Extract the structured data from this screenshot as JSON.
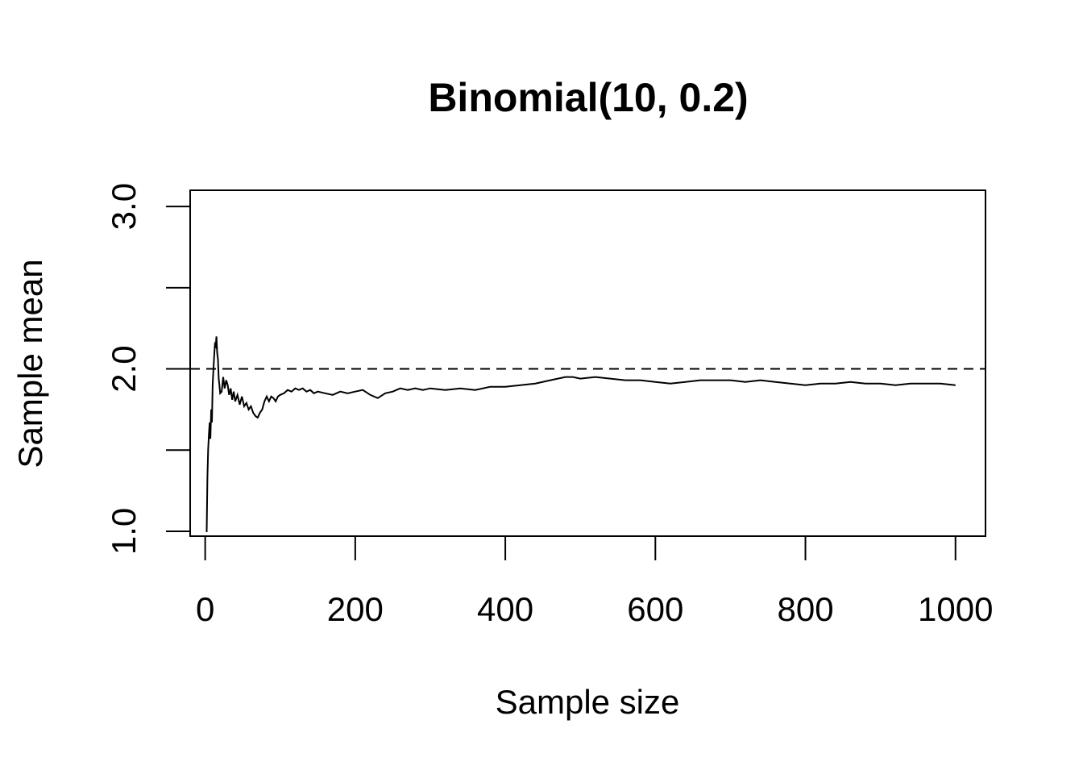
{
  "chart_data": {
    "type": "line",
    "title": "Binomial(10, 0.2)",
    "xlabel": "Sample size",
    "ylabel": "Sample mean",
    "xlim": [
      -20,
      1040
    ],
    "ylim": [
      0.97,
      3.1
    ],
    "x_ticks": [
      0,
      200,
      400,
      600,
      800,
      1000
    ],
    "x_tick_labels": [
      "0",
      "200",
      "400",
      "600",
      "800",
      "1000"
    ],
    "y_ticks": [
      1.0,
      1.5,
      2.0,
      2.5,
      3.0
    ],
    "y_tick_labels": [
      "1.0",
      "",
      "2.0",
      "",
      "3.0"
    ],
    "grid": false,
    "reference_line": {
      "y": 2.0,
      "style": "dashed"
    },
    "series": [
      {
        "x": [
          1,
          2,
          3,
          4,
          5,
          6,
          7,
          8,
          9,
          10,
          11,
          12,
          13,
          14,
          15,
          16,
          17,
          18,
          19,
          20,
          22,
          24,
          26,
          28,
          30,
          32,
          34,
          36,
          38,
          40,
          43,
          46,
          49,
          52,
          55,
          58,
          61,
          64,
          67,
          70,
          73,
          76,
          79,
          82,
          85,
          88,
          91,
          94,
          97,
          100,
          105,
          110,
          115,
          120,
          125,
          130,
          135,
          140,
          145,
          150,
          160,
          170,
          180,
          190,
          200,
          210,
          220,
          230,
          240,
          250,
          260,
          270,
          280,
          290,
          300,
          320,
          340,
          360,
          380,
          400,
          420,
          440,
          460,
          480,
          490,
          500,
          520,
          540,
          560,
          580,
          600,
          620,
          640,
          660,
          680,
          700,
          720,
          740,
          760,
          780,
          800,
          820,
          840,
          860,
          880,
          900,
          920,
          940,
          960,
          980,
          1000
        ],
        "y": [
          1.0,
          1.0,
          1.33,
          1.5,
          1.6,
          1.67,
          1.57,
          1.75,
          1.67,
          1.9,
          2.0,
          2.08,
          2.15,
          2.14,
          2.2,
          2.1,
          2.06,
          1.94,
          1.9,
          1.85,
          1.86,
          1.95,
          1.88,
          1.93,
          1.9,
          1.84,
          1.88,
          1.81,
          1.86,
          1.8,
          1.84,
          1.78,
          1.83,
          1.77,
          1.79,
          1.75,
          1.77,
          1.73,
          1.71,
          1.7,
          1.73,
          1.75,
          1.8,
          1.83,
          1.8,
          1.83,
          1.82,
          1.8,
          1.83,
          1.84,
          1.85,
          1.87,
          1.86,
          1.88,
          1.87,
          1.88,
          1.86,
          1.87,
          1.85,
          1.86,
          1.85,
          1.84,
          1.86,
          1.85,
          1.86,
          1.87,
          1.84,
          1.82,
          1.85,
          1.86,
          1.88,
          1.87,
          1.88,
          1.87,
          1.88,
          1.87,
          1.88,
          1.87,
          1.89,
          1.89,
          1.9,
          1.91,
          1.93,
          1.95,
          1.95,
          1.94,
          1.95,
          1.94,
          1.93,
          1.93,
          1.92,
          1.91,
          1.92,
          1.93,
          1.93,
          1.93,
          1.92,
          1.93,
          1.92,
          1.91,
          1.9,
          1.91,
          1.91,
          1.92,
          1.91,
          1.91,
          1.9,
          1.91,
          1.91,
          1.91,
          1.9
        ]
      }
    ]
  }
}
